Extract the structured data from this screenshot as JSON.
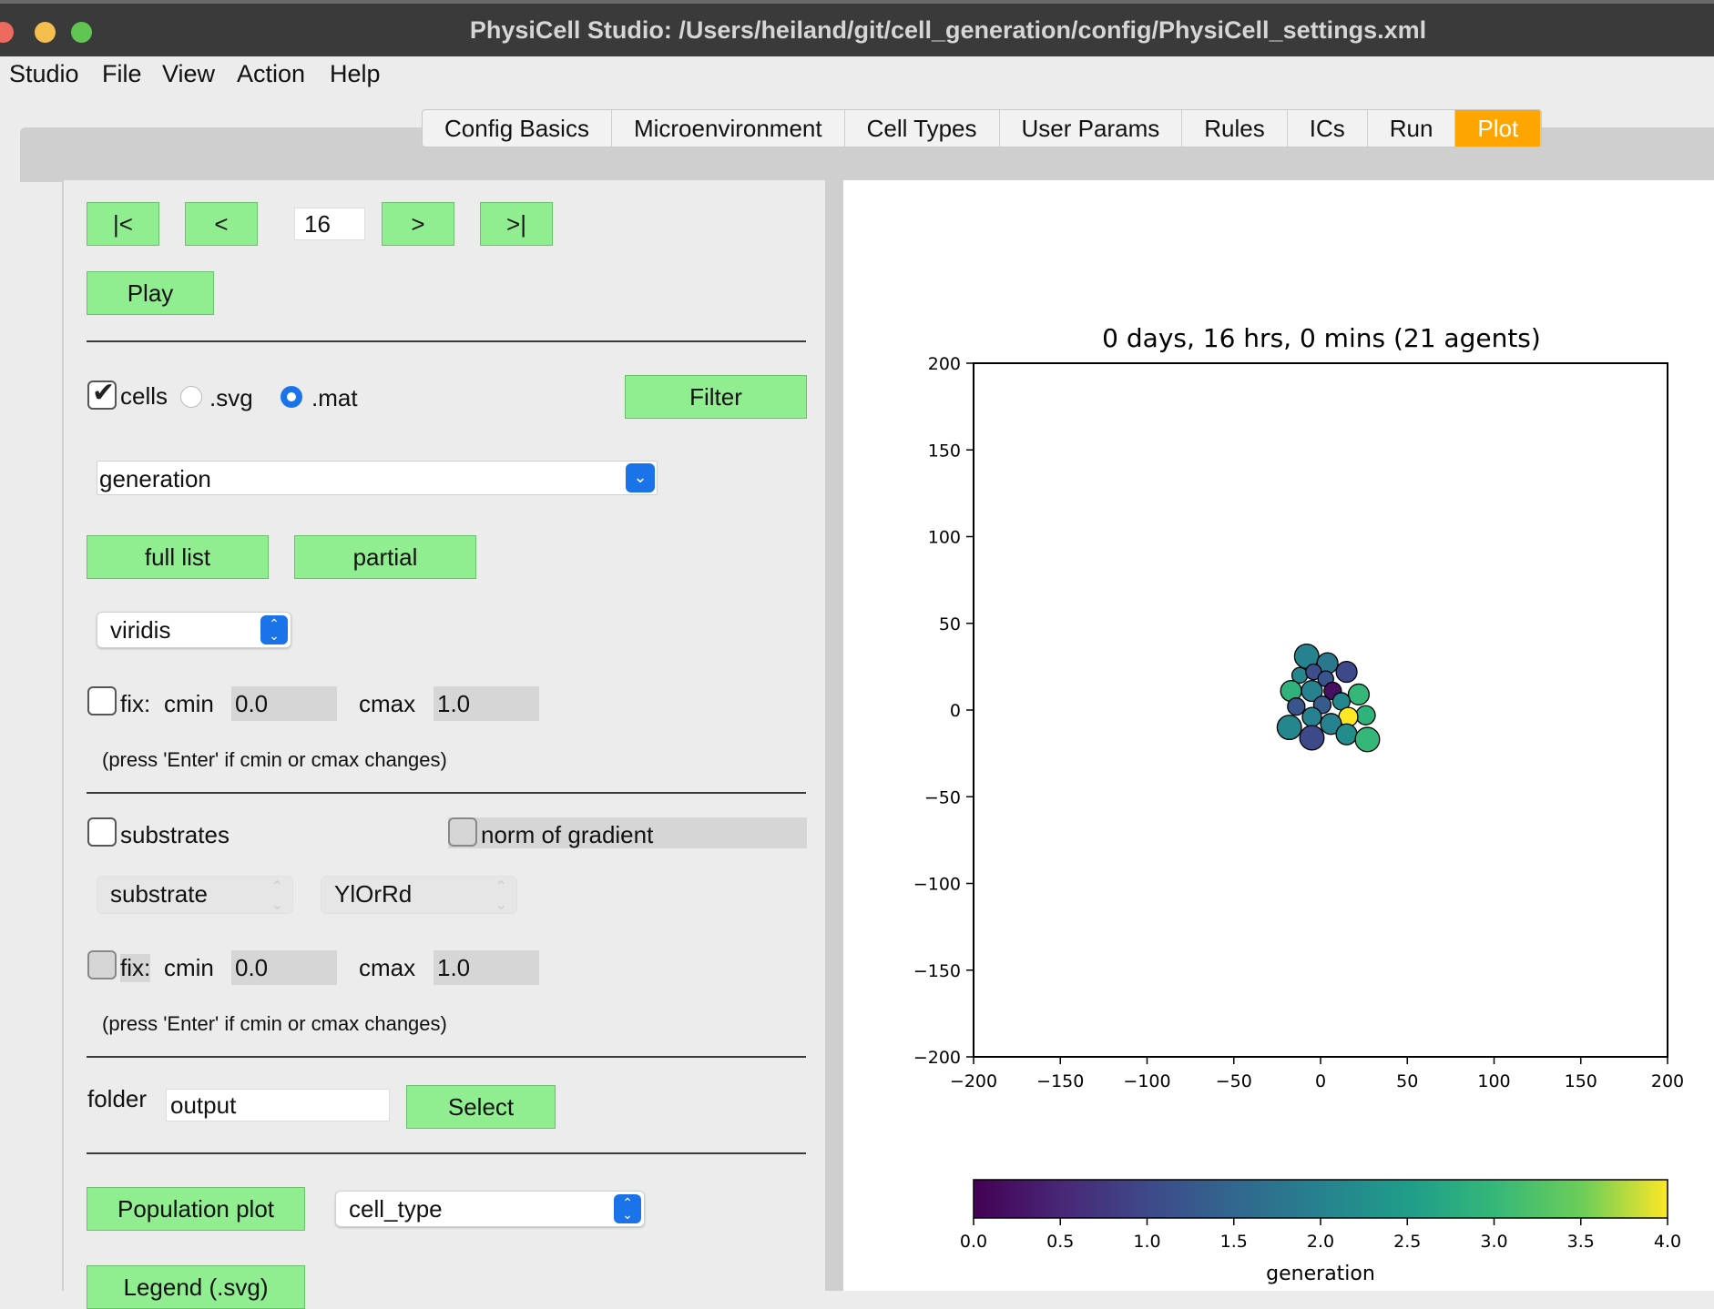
{
  "window": {
    "title": "PhysiCell Studio: /Users/heiland/git/cell_generation/config/PhysiCell_settings.xml",
    "traffic_lights": {
      "close": "#ec6a5e",
      "minimize": "#f4bf4f",
      "zoom": "#61c554"
    }
  },
  "menu": [
    "Studio",
    "File",
    "View",
    "Action",
    "Help"
  ],
  "tabs": [
    "Config Basics",
    "Microenvironment",
    "Cell Types",
    "User Params",
    "Rules",
    "ICs",
    "Run",
    "Plot"
  ],
  "active_tab": "Plot",
  "nav": {
    "first": "|<",
    "prev": "<",
    "frame": "16",
    "next": ">",
    "last": ">|",
    "play": "Play"
  },
  "cells": {
    "label": "cells",
    "checked": true,
    "svg_label": ".svg",
    "mat_label": ".mat",
    "selected_format": ".mat",
    "filter": "Filter",
    "scalar": "generation",
    "full_list": "full list",
    "partial": "partial",
    "colormap": "viridis",
    "fix_label": "fix:",
    "cmin_label": "cmin",
    "cmin": "0.0",
    "cmax_label": "cmax",
    "cmax": "1.0",
    "hint": "(press 'Enter' if cmin or cmax changes)"
  },
  "substrates": {
    "label": "substrates",
    "checked": false,
    "norm_label": "norm of gradient",
    "substrate": "substrate",
    "colormap": "YlOrRd",
    "fix_label": "fix:",
    "cmin_label": "cmin",
    "cmin": "0.0",
    "cmax_label": "cmax",
    "cmax": "1.0",
    "hint": "(press 'Enter' if cmin or cmax changes)"
  },
  "folder": {
    "label": "folder",
    "value": "output",
    "select": "Select"
  },
  "population": {
    "button": "Population plot",
    "field": "cell_type"
  },
  "legend_button": "Legend (.svg)",
  "colors": {
    "accent": "#ffa500",
    "button_green": "#90ee90",
    "combo_blue": "#1a73e8"
  },
  "chart_data": {
    "type": "scatter",
    "title": "0 days, 16 hrs, 0 mins (21 agents)",
    "xlim": [
      -200,
      200
    ],
    "ylim": [
      -200,
      200
    ],
    "xticks": [
      "−200",
      "−150",
      "−100",
      "−50",
      "0",
      "50",
      "100",
      "150",
      "200"
    ],
    "yticks": [
      "200",
      "150",
      "100",
      "50",
      "0",
      "−50",
      "−100",
      "−150",
      "−200"
    ],
    "colormap": "viridis",
    "cmin": 0,
    "cmax": 4,
    "colorbar_label": "generation",
    "colorbar_ticks": [
      "0.0",
      "0.5",
      "1.0",
      "1.5",
      "2.0",
      "2.5",
      "3.0",
      "3.5",
      "4.0"
    ],
    "points": [
      {
        "x": -8,
        "y": 31,
        "r": 7,
        "v": 2.0
      },
      {
        "x": 4,
        "y": 27,
        "r": 6,
        "v": 1.8
      },
      {
        "x": 15,
        "y": 22,
        "r": 6,
        "v": 1.0
      },
      {
        "x": -12,
        "y": 20,
        "r": 4.5,
        "v": 2.1
      },
      {
        "x": -4,
        "y": 22,
        "r": 4.5,
        "v": 1.1
      },
      {
        "x": 3,
        "y": 18,
        "r": 4.5,
        "v": 1.2
      },
      {
        "x": -17,
        "y": 11,
        "r": 6,
        "v": 2.9
      },
      {
        "x": -5,
        "y": 11,
        "r": 6,
        "v": 2.0
      },
      {
        "x": 7,
        "y": 11,
        "r": 5,
        "v": 0.2
      },
      {
        "x": 22,
        "y": 9,
        "r": 6,
        "v": 3.0
      },
      {
        "x": -14,
        "y": 2,
        "r": 5,
        "v": 1.2
      },
      {
        "x": 1,
        "y": 3,
        "r": 5,
        "v": 1.3
      },
      {
        "x": 12,
        "y": 5,
        "r": 5,
        "v": 2.1
      },
      {
        "x": 26,
        "y": -3,
        "r": 5.5,
        "v": 2.9
      },
      {
        "x": 16,
        "y": -4,
        "r": 5.5,
        "v": 4.0
      },
      {
        "x": -5,
        "y": -4,
        "r": 5.5,
        "v": 2.0
      },
      {
        "x": 6,
        "y": -8,
        "r": 6,
        "v": 2.0
      },
      {
        "x": -18,
        "y": -10,
        "r": 7,
        "v": 2.1
      },
      {
        "x": 15,
        "y": -14,
        "r": 6,
        "v": 2.2
      },
      {
        "x": -5,
        "y": -16,
        "r": 7,
        "v": 1.0
      },
      {
        "x": 27,
        "y": -17,
        "r": 7,
        "v": 3.0
      }
    ]
  }
}
